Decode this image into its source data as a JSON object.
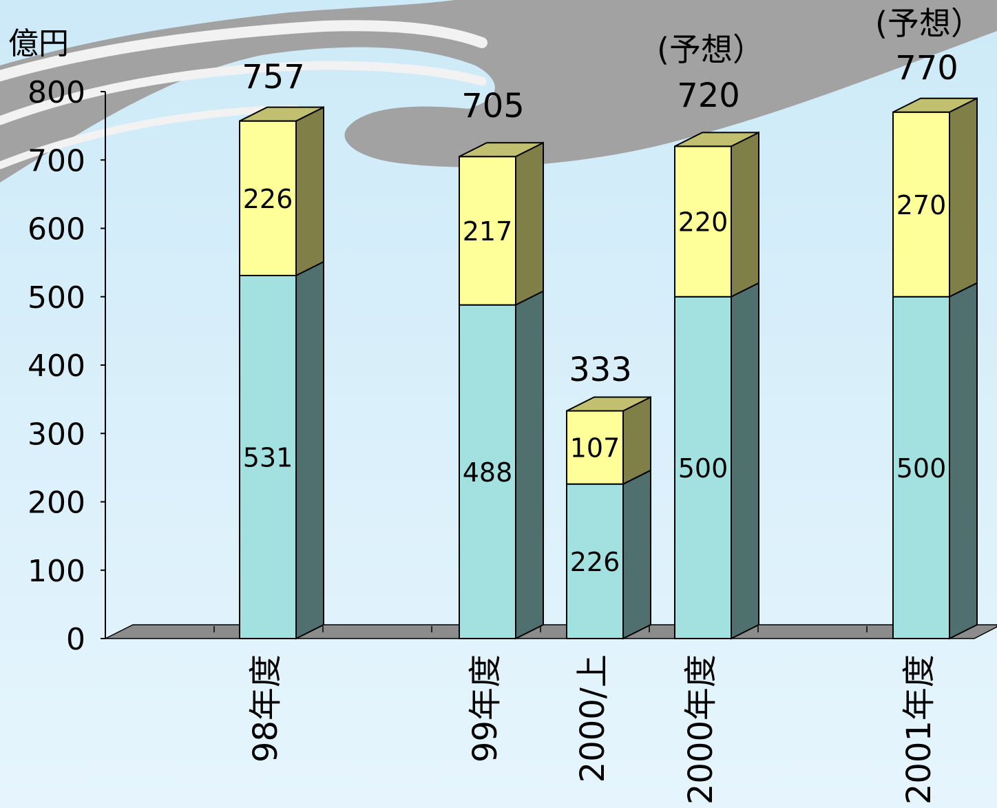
{
  "chart_data": {
    "type": "bar",
    "stacked": true,
    "three_d": true,
    "unit_label": "億円",
    "categories": [
      "98年度",
      "99年度",
      "2000/上",
      "2000年度",
      "2001年度"
    ],
    "series": [
      {
        "values": [
          531,
          488,
          226,
          500,
          500
        ],
        "color": "#a3e0e0",
        "side_color": "#4f706e"
      },
      {
        "values": [
          226,
          217,
          107,
          220,
          270
        ],
        "color": "#ffff99",
        "side_color": "#7f7f47"
      }
    ],
    "totals": [
      "757",
      "705",
      "333",
      "720",
      "770"
    ],
    "annotations": [
      "",
      "",
      "",
      "(予想）",
      "(予想）"
    ],
    "ylim": [
      0,
      800
    ],
    "y_ticks": [
      "0",
      "100",
      "200",
      "300",
      "400",
      "500",
      "600",
      "700",
      "800"
    ],
    "grid": false,
    "legend": "none"
  }
}
